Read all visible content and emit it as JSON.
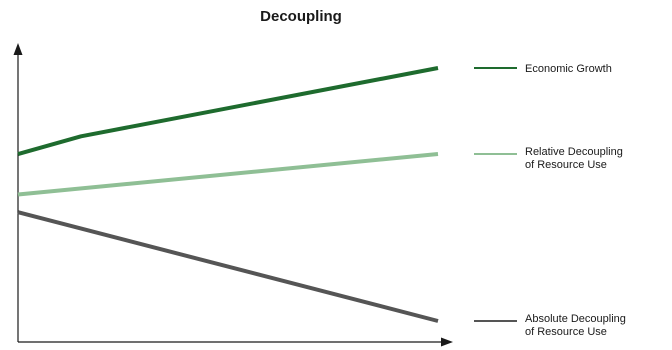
{
  "title": "Decoupling",
  "chart_data": {
    "type": "line",
    "title": "Decoupling",
    "xlabel": "",
    "ylabel": "",
    "grid": false,
    "legend_placement": "right",
    "series": [
      {
        "name": "Economic Growth",
        "label_lines": [
          "Economic Growth"
        ],
        "color": "#1e6b2e",
        "points": [
          [
            0,
            0.66
          ],
          [
            0.15,
            0.73
          ],
          [
            1,
            1.0
          ]
        ]
      },
      {
        "name": "Relative Decoupling of Resource Use",
        "label_lines": [
          "Relative Decoupling",
          "of Resource Use"
        ],
        "color": "#8fbf95",
        "points": [
          [
            0,
            0.5
          ],
          [
            1,
            0.66
          ]
        ]
      },
      {
        "name": "Absolute Decoupling of Resource Use",
        "label_lines": [
          "Absolute Decoupling",
          "of Resource Use"
        ],
        "color": "#555555",
        "points": [
          [
            0,
            0.43
          ],
          [
            1,
            0.0
          ]
        ]
      }
    ]
  }
}
